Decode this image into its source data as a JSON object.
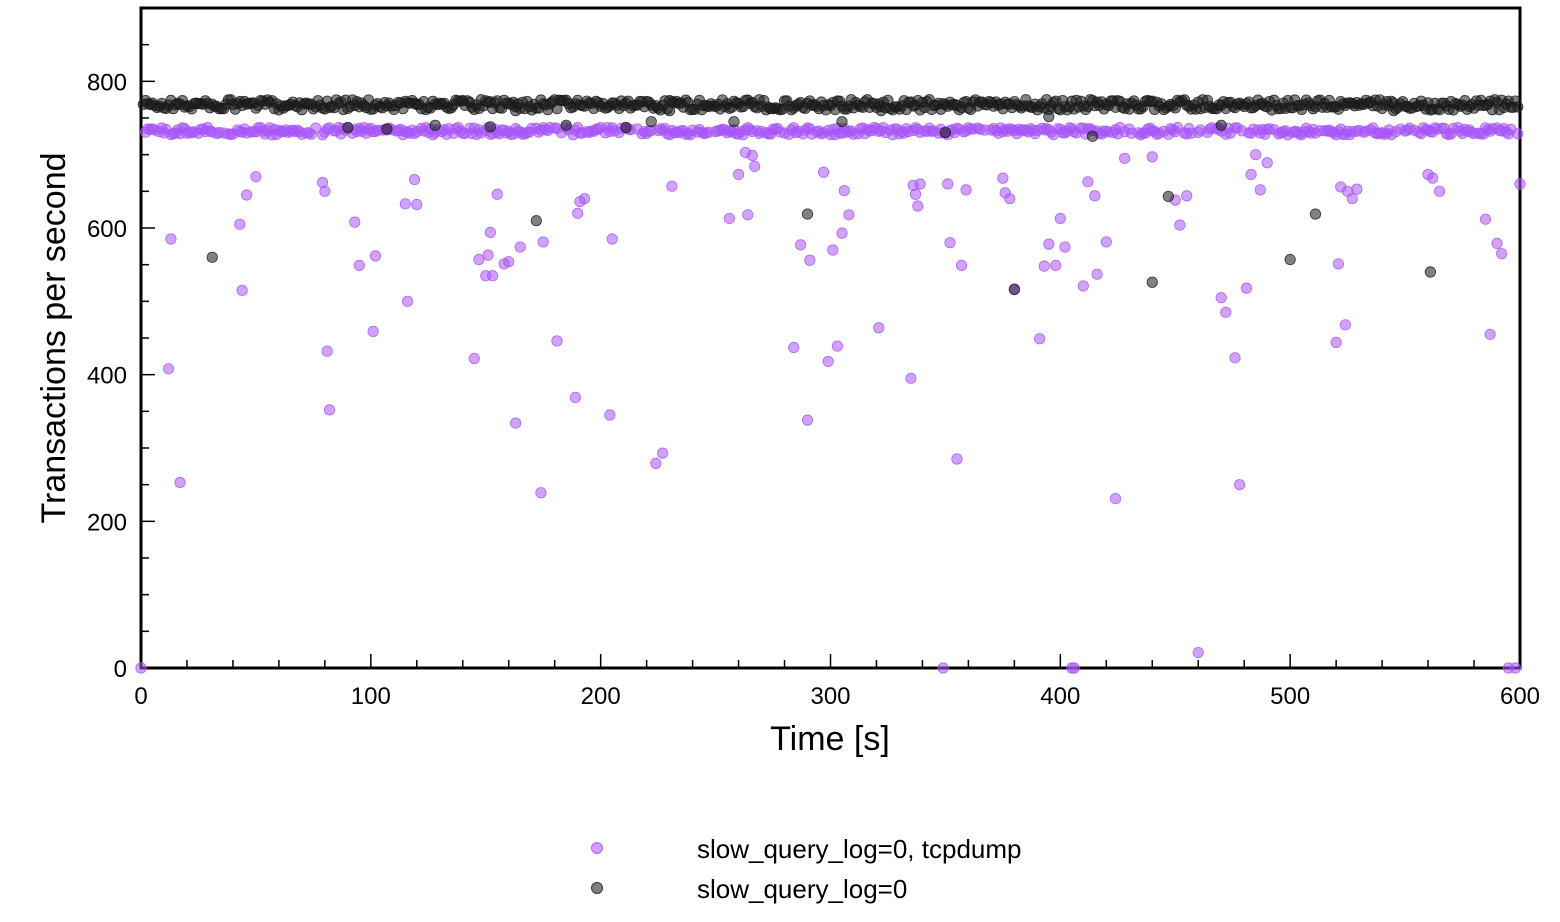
{
  "chart_data": {
    "type": "scatter",
    "title": "",
    "xlabel": "Time [s]",
    "ylabel": "Transactions per second",
    "xlim": [
      0,
      600
    ],
    "ylim": [
      0,
      900
    ],
    "x_ticks": [
      0,
      100,
      200,
      300,
      400,
      500,
      600
    ],
    "y_ticks": [
      0,
      200,
      400,
      600,
      800
    ],
    "x_tick_labels": [
      "0",
      "100",
      "200",
      "300",
      "400",
      "500",
      "600"
    ],
    "y_tick_labels": [
      "0",
      "200",
      "400",
      "600",
      "800"
    ],
    "grid": false,
    "legend_position": "bottom",
    "series": [
      {
        "name": "slow_query_log=0, tcpdump",
        "color": "#a855f7",
        "x": [
          0,
          12,
          13,
          17,
          43,
          44,
          46,
          50,
          79,
          80,
          81,
          82,
          93,
          95,
          101,
          102,
          115,
          116,
          119,
          120,
          145,
          147,
          150,
          151,
          152,
          153,
          155,
          158,
          160,
          163,
          165,
          174,
          175,
          181,
          189,
          190,
          191,
          193,
          204,
          205,
          224,
          227,
          231,
          256,
          260,
          263,
          264,
          266,
          267,
          284,
          287,
          290,
          291,
          297,
          299,
          301,
          303,
          305,
          306,
          308,
          321,
          335,
          336,
          337,
          338,
          339,
          349,
          351,
          352,
          355,
          357,
          359,
          375,
          376,
          378,
          380,
          391,
          393,
          395,
          398,
          400,
          402,
          405,
          406,
          410,
          412,
          415,
          416,
          420,
          424,
          428,
          440,
          450,
          452,
          455,
          460,
          470,
          472,
          476,
          478,
          481,
          483,
          485,
          487,
          490,
          520,
          521,
          522,
          524,
          525,
          527,
          529,
          560,
          562,
          565,
          585,
          587,
          590,
          592,
          595,
          598,
          600
        ],
        "y": [
          0,
          408,
          585,
          253,
          605,
          515,
          645,
          670,
          662,
          650,
          432,
          352,
          608,
          549,
          459,
          562,
          633,
          500,
          666,
          632,
          422,
          557,
          535,
          563,
          594,
          535,
          646,
          551,
          554,
          334,
          574,
          239,
          581,
          446,
          369,
          620,
          636,
          640,
          345,
          585,
          279,
          293,
          657,
          613,
          673,
          703,
          618,
          699,
          684,
          437,
          577,
          338,
          556,
          676,
          418,
          570,
          439,
          593,
          651,
          618,
          464,
          395,
          658,
          646,
          630,
          660,
          0,
          660,
          580,
          285,
          549,
          652,
          668,
          648,
          640,
          517,
          449,
          548,
          578,
          549,
          613,
          574,
          0,
          0,
          521,
          663,
          644,
          537,
          581,
          231,
          695,
          697,
          638,
          604,
          644,
          21,
          505,
          485,
          423,
          250,
          518,
          673,
          700,
          652,
          689,
          444,
          551,
          656,
          468,
          650,
          640,
          653,
          673,
          668,
          650,
          612,
          455,
          579,
          565,
          0,
          0,
          660
        ]
      },
      {
        "name": "slow_query_log=0",
        "color": "#1a1a1a",
        "x": [
          31,
          90,
          107,
          128,
          152,
          163,
          172,
          185,
          211,
          222,
          230,
          258,
          290,
          305,
          322,
          350,
          380,
          395,
          414,
          440,
          447,
          470,
          500,
          511,
          545,
          561
        ],
        "y": [
          560,
          737,
          735,
          740,
          738,
          760,
          610,
          740,
          737,
          745,
          760,
          745,
          619,
          745,
          760,
          730,
          516,
          752,
          725,
          526,
          643,
          740,
          557,
          619,
          760,
          540
        ]
      }
    ],
    "dense_bands": [
      {
        "series": 1,
        "center": 768,
        "spread": 14
      },
      {
        "series": 0,
        "center": 732,
        "spread": 10
      }
    ],
    "legend": [
      {
        "label": "slow_query_log=0, tcpdump",
        "color": "#a855f7"
      },
      {
        "label": "slow_query_log=0",
        "color": "#1a1a1a"
      }
    ]
  }
}
